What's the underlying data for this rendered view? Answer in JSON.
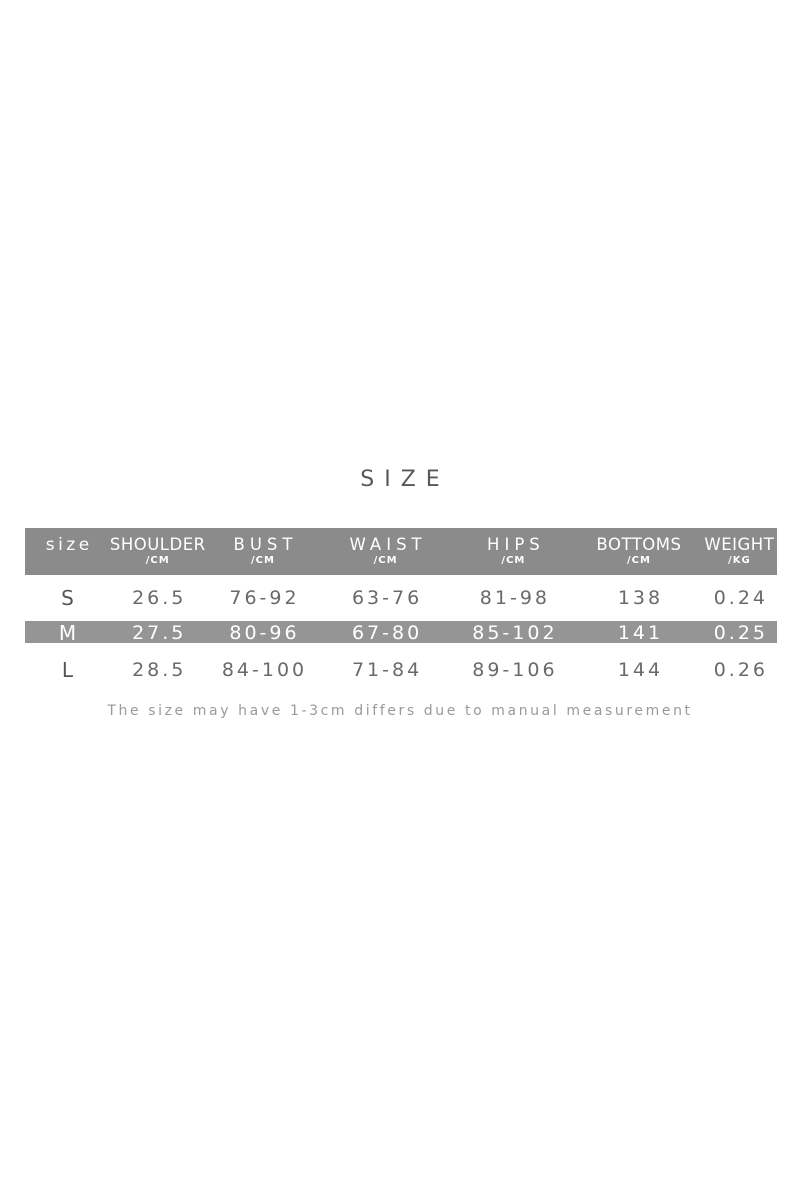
{
  "title": "SIZE",
  "note": "The size may have 1-3cm differs due to manual measurement",
  "table": {
    "header_bg": "#8b8b8b",
    "highlight_bg": "#959595",
    "columns": [
      {
        "label": "size",
        "unit": ""
      },
      {
        "label": "SHOULDER",
        "unit": "/CM"
      },
      {
        "label": "BUST",
        "unit": "/CM"
      },
      {
        "label": "WAIST",
        "unit": "/CM"
      },
      {
        "label": "HIPS",
        "unit": "/CM"
      },
      {
        "label": "BOTTOMS",
        "unit": "/CM"
      },
      {
        "label": "WEIGHT",
        "unit": "/KG"
      }
    ],
    "rows": [
      {
        "label": "S",
        "highlighted": false,
        "cells": [
          "26.5",
          "76-92",
          "63-76",
          "81-98",
          "138",
          "0.24"
        ]
      },
      {
        "label": "M",
        "highlighted": true,
        "cells": [
          "27.5",
          "80-96",
          "67-80",
          "85-102",
          "141",
          "0.25"
        ]
      },
      {
        "label": "L",
        "highlighted": false,
        "cells": [
          "28.5",
          "84-100",
          "71-84",
          "89-106",
          "144",
          "0.26"
        ]
      }
    ]
  }
}
